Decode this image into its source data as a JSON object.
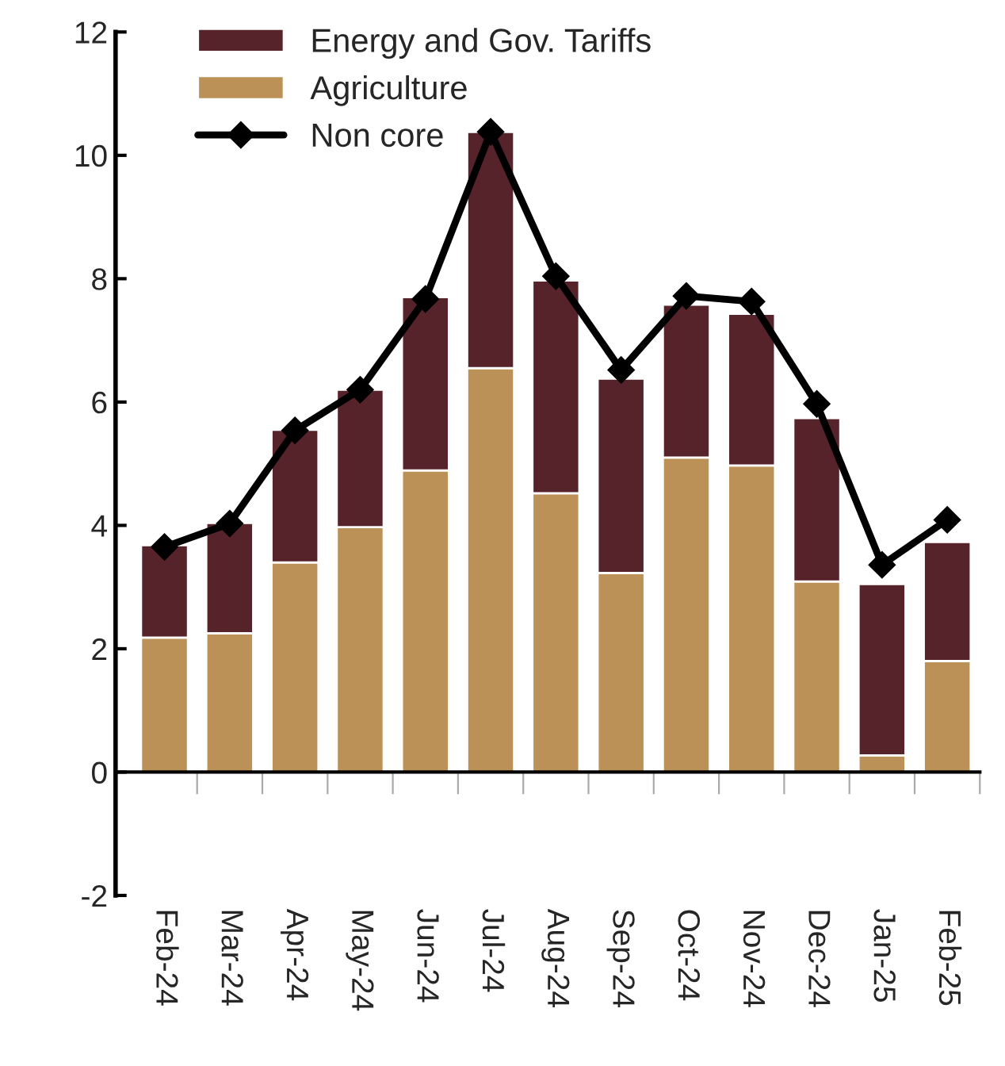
{
  "chart_data": {
    "type": "bar",
    "stacked": true,
    "categories": [
      "Feb-24",
      "Mar-24",
      "Apr-24",
      "May-24",
      "Jun-24",
      "Jul-24",
      "Aug-24",
      "Sep-24",
      "Oct-24",
      "Nov-24",
      "Dec-24",
      "Jan-25",
      "Feb-25"
    ],
    "series": [
      {
        "name": "Agriculture",
        "color": "#bb9157",
        "values": [
          2.18,
          2.25,
          3.4,
          3.97,
          4.89,
          6.55,
          4.52,
          3.23,
          5.1,
          4.97,
          3.09,
          0.27,
          1.8
        ]
      },
      {
        "name": "Energy and Gov. Tariffs",
        "color": "#56232b",
        "values": [
          1.5,
          1.79,
          2.15,
          2.23,
          2.81,
          3.83,
          3.45,
          3.15,
          2.48,
          2.46,
          2.65,
          2.78,
          1.93
        ]
      },
      {
        "name": "Non core",
        "type": "line",
        "color": "#000000",
        "marker": "diamond",
        "values": [
          3.65,
          4.03,
          5.54,
          6.2,
          7.67,
          10.38,
          8.04,
          6.52,
          7.72,
          7.63,
          5.97,
          3.36,
          4.09
        ]
      }
    ],
    "ylim": [
      -2,
      12
    ],
    "yticks": [
      -2,
      0,
      2,
      4,
      6,
      8,
      10,
      12
    ],
    "legend": "top left"
  }
}
